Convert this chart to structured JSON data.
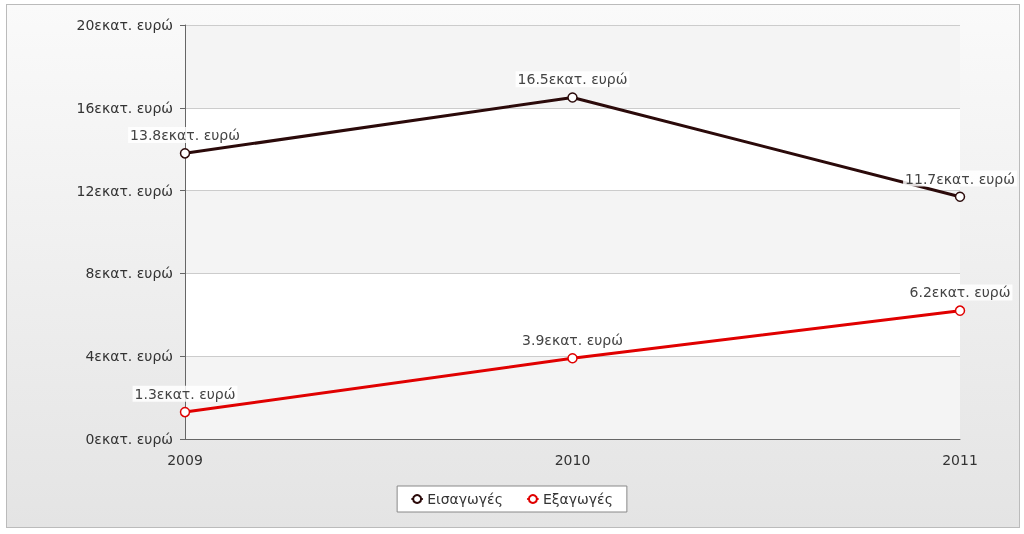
{
  "chart_data": {
    "type": "line",
    "categories": [
      "2009",
      "2010",
      "2011"
    ],
    "series": [
      {
        "name": "Εισαγωγές",
        "color": "#2b0a0a",
        "values": [
          13.8,
          16.5,
          11.7
        ],
        "value_labels": [
          "13.8εκατ. ευρώ",
          "16.5εκατ. ευρώ",
          "11.7εκατ. ευρώ"
        ]
      },
      {
        "name": "Εξαγωγές",
        "color": "#e00000",
        "values": [
          1.3,
          3.9,
          6.2
        ],
        "value_labels": [
          "1.3εκατ. ευρώ",
          "3.9εκατ. ευρώ",
          "6.2εκατ. ευρώ"
        ]
      }
    ],
    "ylim": [
      0,
      20
    ],
    "yticks": [
      {
        "value": 0,
        "label": "0εκατ. ευρώ"
      },
      {
        "value": 4,
        "label": "4εκατ. ευρώ"
      },
      {
        "value": 8,
        "label": "8εκατ. ευρώ"
      },
      {
        "value": 12,
        "label": "12εκατ. ευρώ"
      },
      {
        "value": 16,
        "label": "16εκατ. ευρώ"
      },
      {
        "value": 20,
        "label": "20εκατ. ευρώ"
      }
    ],
    "grid": "y",
    "legend": "bottom",
    "marker": "circle",
    "line_style": "solid"
  }
}
